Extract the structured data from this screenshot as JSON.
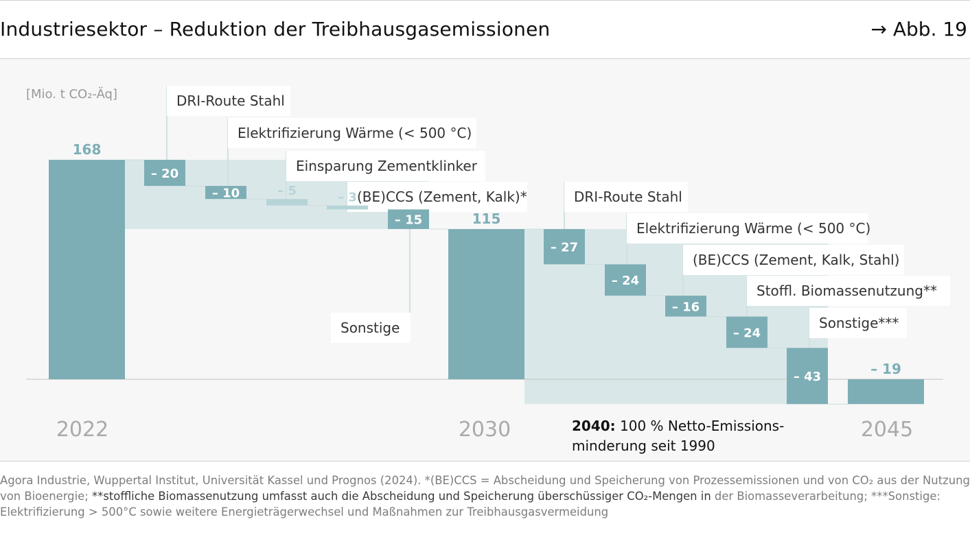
{
  "header": {
    "title": "Industriesektor – Reduktion der Treibhausgasemissionen",
    "figure_ref": "→ Abb. 19"
  },
  "chart_data": {
    "type": "waterfall",
    "unit_label": "[Mio. t CO₂-Äq]",
    "colors": {
      "bar": "#7daeb6",
      "bar_light": "#b6d4d8",
      "band": "#dae7e8",
      "axis": "#c2c2c2",
      "year": "#aaaaaa",
      "label_line": "#d0e1e3"
    },
    "ylim": [
      0,
      168
    ],
    "years": [
      "2022",
      "2030",
      "2045"
    ],
    "bars": [
      {
        "kind": "total",
        "year": "2022",
        "value": 168,
        "label": "168"
      },
      {
        "kind": "step",
        "name": "DRI-Route Stahl",
        "value": -20,
        "label": "– 20"
      },
      {
        "kind": "step",
        "name": "Elektrifizierung Wärme (< 500 °C)",
        "value": -10,
        "label": "– 10"
      },
      {
        "kind": "step",
        "name": "Einsparung Zementklinker",
        "value": -5,
        "label": "– 5",
        "light": true
      },
      {
        "kind": "step",
        "name": "(BE)CCS (Zement, Kalk)*",
        "value": -3,
        "label": "– 3",
        "light": true
      },
      {
        "kind": "step",
        "name": "Sonstige",
        "value": -15,
        "label": "– 15"
      },
      {
        "kind": "total",
        "year": "2030",
        "value": 115,
        "label": "115"
      },
      {
        "kind": "step",
        "name": "DRI-Route Stahl",
        "value": -27,
        "label": "– 27"
      },
      {
        "kind": "step",
        "name": "Elektrifizierung Wärme (< 500 °C)",
        "value": -24,
        "label": "– 24"
      },
      {
        "kind": "step",
        "name": "(BE)CCS (Zement, Kalk, Stahl)",
        "value": -16,
        "label": "– 16"
      },
      {
        "kind": "step",
        "name": "Stoffl. Biomassenutzung**",
        "value": -24,
        "label": "– 24"
      },
      {
        "kind": "step",
        "name": "Sonstige***",
        "value": -43,
        "label": "– 43"
      },
      {
        "kind": "total",
        "year": "2045",
        "value": -19,
        "label": "– 19"
      }
    ],
    "annotation": {
      "bold": "2040:",
      "text_line1": " 100 % Netto-Emissions-",
      "text_line2": "minderung seit 1990"
    }
  },
  "source": {
    "part1": "Agora Industrie, Wuppertal Institut, Universität Kassel und Prognos (2024). *(BE)CCS = Abscheidung und Speicherung von Prozessemissionen und von CO₂ aus der Nutzung von Bioenergie; ",
    "part2": "**stoffliche Biomassenutzung umfasst auch die Abscheidung und Speicherung überschüssiger CO₂-Mengen in",
    "part3": " der Biomasseverarbeitung; ***Sonstige: Elektrifizierung > 500°C sowie weitere Energieträgerwechsel und Maßnahmen zur Treibhausgasvermeidung"
  }
}
